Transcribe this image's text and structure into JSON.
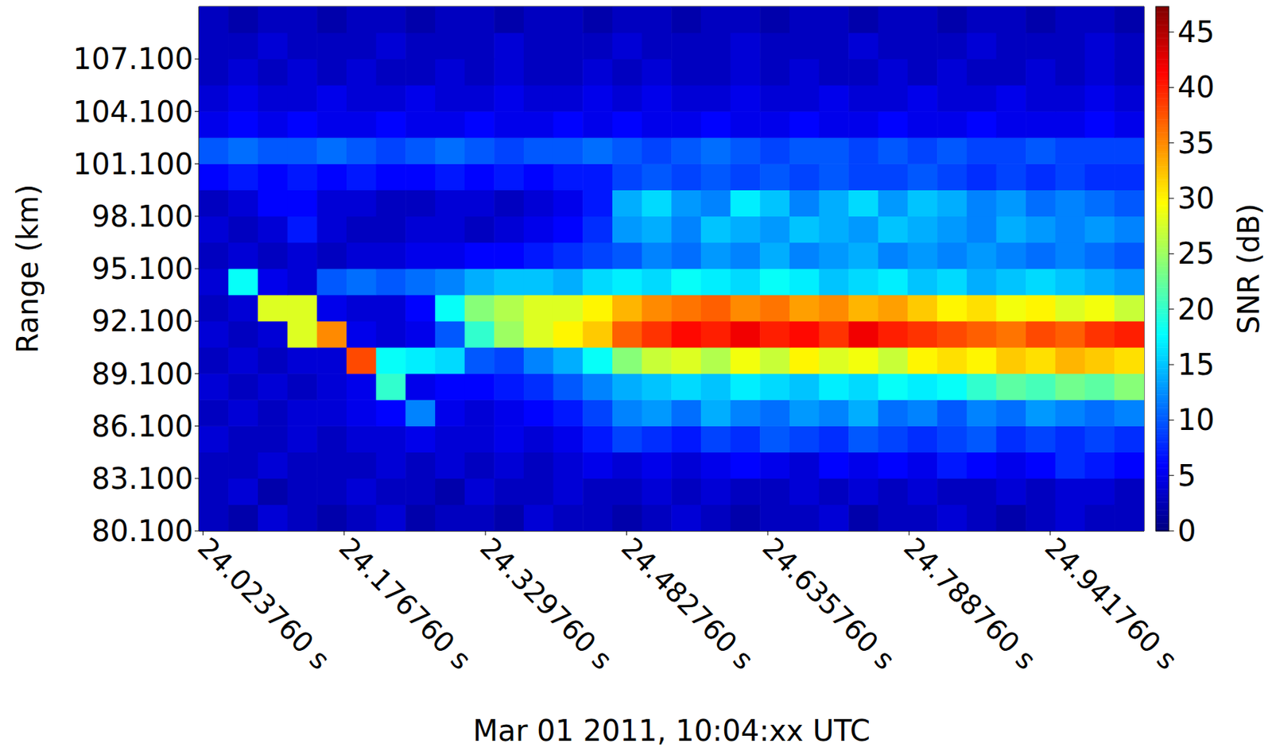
{
  "chart_data": {
    "type": "heatmap",
    "x_label": "Mar 01 2011, 10:04:xx UTC",
    "y_label": "Range (km)",
    "xlim": [
      24.0195,
      25.0435
    ],
    "ylim": [
      80.1,
      110.1
    ],
    "xticks": [
      {
        "value": 24.02376,
        "label": "24.023760 s"
      },
      {
        "value": 24.17676,
        "label": "24.176760 s"
      },
      {
        "value": 24.32976,
        "label": "24.329760 s"
      },
      {
        "value": 24.48276,
        "label": "24.482760 s"
      },
      {
        "value": 24.63576,
        "label": "24.635760 s"
      },
      {
        "value": 24.78876,
        "label": "24.788760 s"
      },
      {
        "value": 24.94176,
        "label": "24.941760 s"
      }
    ],
    "yticks": [
      {
        "value": 80.1,
        "label": "80.100"
      },
      {
        "value": 83.1,
        "label": "83.100"
      },
      {
        "value": 86.1,
        "label": "86.100"
      },
      {
        "value": 89.1,
        "label": "89.100"
      },
      {
        "value": 92.1,
        "label": "92.100"
      },
      {
        "value": 95.1,
        "label": "95.100"
      },
      {
        "value": 98.1,
        "label": "98.100"
      },
      {
        "value": 101.1,
        "label": "101.100"
      },
      {
        "value": 104.1,
        "label": "104.100"
      },
      {
        "value": 107.1,
        "label": "107.100"
      }
    ],
    "x": [
      24.0355,
      24.0675,
      24.0995,
      24.1315,
      24.1635,
      24.1955,
      24.2275,
      24.2595,
      24.2915,
      24.3235,
      24.3555,
      24.3875,
      24.4195,
      24.4515,
      24.4835,
      24.5155,
      24.5475,
      24.5795,
      24.6115,
      24.6435,
      24.6755,
      24.7075,
      24.7395,
      24.7715,
      24.8035,
      24.8355,
      24.8675,
      24.8995,
      24.9315,
      24.9635,
      24.9955,
      25.0275
    ],
    "y": [
      80.85,
      82.35,
      83.85,
      85.35,
      86.85,
      88.35,
      89.85,
      91.35,
      92.85,
      94.35,
      95.85,
      97.35,
      98.85,
      100.35,
      101.85,
      103.35,
      104.85,
      106.35,
      107.85,
      109.35
    ],
    "cells": [
      [
        3,
        2,
        4,
        3,
        2,
        3,
        4,
        2,
        3,
        3,
        2,
        4,
        3,
        3,
        2,
        3,
        4,
        3,
        2,
        3,
        3,
        4,
        2,
        3,
        3,
        4,
        3,
        2,
        3,
        4,
        3,
        3
      ],
      [
        3,
        4,
        2,
        3,
        3,
        4,
        3,
        3,
        2,
        4,
        3,
        3,
        4,
        3,
        3,
        4,
        3,
        4,
        3,
        3,
        4,
        3,
        4,
        3,
        4,
        3,
        3,
        4,
        3,
        4,
        4,
        3
      ],
      [
        3,
        3,
        4,
        3,
        3,
        3,
        4,
        3,
        4,
        3,
        4,
        3,
        4,
        5,
        4,
        5,
        4,
        5,
        6,
        5,
        4,
        6,
        5,
        6,
        5,
        7,
        6,
        5,
        6,
        8,
        7,
        6
      ],
      [
        4,
        3,
        3,
        4,
        3,
        4,
        4,
        5,
        4,
        4,
        5,
        4,
        5,
        7,
        9,
        8,
        7,
        9,
        8,
        10,
        9,
        8,
        10,
        9,
        8,
        9,
        10,
        8,
        9,
        8,
        9,
        8
      ],
      [
        3,
        4,
        3,
        4,
        4,
        5,
        6,
        12,
        5,
        4,
        5,
        6,
        7,
        9,
        12,
        13,
        11,
        14,
        12,
        11,
        13,
        12,
        14,
        11,
        12,
        10,
        12,
        11,
        13,
        12,
        11,
        12
      ],
      [
        4,
        3,
        4,
        3,
        4,
        5,
        20,
        5,
        6,
        6,
        7,
        8,
        10,
        12,
        14,
        15,
        16,
        15,
        17,
        16,
        15,
        17,
        16,
        18,
        17,
        18,
        20,
        22,
        21,
        23,
        22,
        24
      ],
      [
        3,
        4,
        3,
        4,
        4,
        38,
        18,
        17,
        16,
        10,
        9,
        12,
        14,
        18,
        24,
        27,
        28,
        26,
        29,
        27,
        30,
        28,
        29,
        27,
        30,
        31,
        30,
        32,
        31,
        33,
        32,
        31
      ],
      [
        4,
        3,
        4,
        28,
        35,
        5,
        4,
        5,
        10,
        20,
        25,
        28,
        30,
        32,
        37,
        39,
        41,
        40,
        42,
        40,
        41,
        39,
        42,
        40,
        39,
        38,
        37,
        36,
        38,
        37,
        39,
        40
      ],
      [
        3,
        4,
        28,
        28,
        5,
        4,
        4,
        6,
        18,
        24,
        26,
        28,
        28,
        30,
        33,
        35,
        36,
        37,
        35,
        36,
        34,
        35,
        33,
        34,
        32,
        30,
        31,
        29,
        30,
        28,
        29,
        27
      ],
      [
        4,
        18,
        5,
        4,
        10,
        11,
        10,
        11,
        12,
        14,
        15,
        15,
        14,
        16,
        17,
        16,
        18,
        17,
        16,
        18,
        17,
        15,
        16,
        17,
        15,
        16,
        14,
        15,
        16,
        15,
        14,
        13
      ],
      [
        3,
        4,
        3,
        4,
        3,
        4,
        4,
        5,
        5,
        6,
        6,
        7,
        8,
        9,
        10,
        12,
        11,
        13,
        12,
        14,
        12,
        13,
        14,
        12,
        13,
        12,
        13,
        12,
        11,
        12,
        11,
        10
      ],
      [
        4,
        3,
        4,
        7,
        4,
        3,
        3,
        4,
        4,
        3,
        4,
        5,
        6,
        8,
        13,
        14,
        12,
        15,
        14,
        13,
        15,
        14,
        13,
        15,
        14,
        13,
        12,
        14,
        13,
        12,
        13,
        12
      ],
      [
        3,
        4,
        6,
        6,
        4,
        4,
        3,
        3,
        4,
        4,
        3,
        4,
        5,
        7,
        14,
        16,
        13,
        12,
        17,
        15,
        12,
        14,
        16,
        13,
        15,
        14,
        12,
        13,
        11,
        12,
        11,
        10
      ],
      [
        6,
        7,
        6,
        7,
        6,
        7,
        6,
        6,
        7,
        6,
        7,
        6,
        7,
        7,
        9,
        10,
        9,
        10,
        9,
        10,
        9,
        10,
        9,
        9,
        10,
        9,
        8,
        9,
        8,
        9,
        8,
        8
      ],
      [
        10,
        11,
        10,
        10,
        11,
        10,
        9,
        10,
        11,
        10,
        9,
        10,
        10,
        11,
        10,
        9,
        10,
        11,
        10,
        9,
        10,
        10,
        9,
        10,
        9,
        10,
        9,
        9,
        10,
        9,
        9,
        9
      ],
      [
        5,
        6,
        5,
        6,
        5,
        5,
        6,
        5,
        5,
        6,
        5,
        5,
        6,
        5,
        6,
        5,
        5,
        6,
        5,
        5,
        6,
        5,
        5,
        6,
        5,
        5,
        6,
        5,
        5,
        5,
        6,
        5
      ],
      [
        4,
        5,
        4,
        4,
        5,
        4,
        4,
        5,
        4,
        4,
        5,
        4,
        4,
        5,
        4,
        5,
        4,
        4,
        5,
        4,
        4,
        5,
        4,
        4,
        5,
        4,
        4,
        5,
        4,
        4,
        5,
        4
      ],
      [
        3,
        4,
        3,
        4,
        3,
        4,
        3,
        3,
        4,
        3,
        4,
        3,
        3,
        4,
        3,
        4,
        3,
        3,
        4,
        3,
        4,
        3,
        3,
        4,
        3,
        4,
        3,
        3,
        4,
        3,
        4,
        3
      ],
      [
        3,
        3,
        4,
        3,
        3,
        3,
        4,
        3,
        3,
        3,
        4,
        3,
        3,
        3,
        4,
        3,
        3,
        3,
        4,
        3,
        3,
        3,
        4,
        3,
        3,
        3,
        4,
        3,
        3,
        3,
        4,
        3
      ],
      [
        3,
        2,
        3,
        3,
        2,
        3,
        3,
        2,
        3,
        3,
        2,
        3,
        3,
        2,
        3,
        3,
        2,
        3,
        3,
        2,
        3,
        3,
        2,
        3,
        3,
        2,
        3,
        3,
        2,
        3,
        3,
        2
      ]
    ],
    "colorbar": {
      "label": "SNR (dB)",
      "range": [
        0,
        47.3
      ],
      "ticks": [
        0,
        5,
        10,
        15,
        20,
        25,
        30,
        35,
        40,
        45
      ]
    }
  }
}
